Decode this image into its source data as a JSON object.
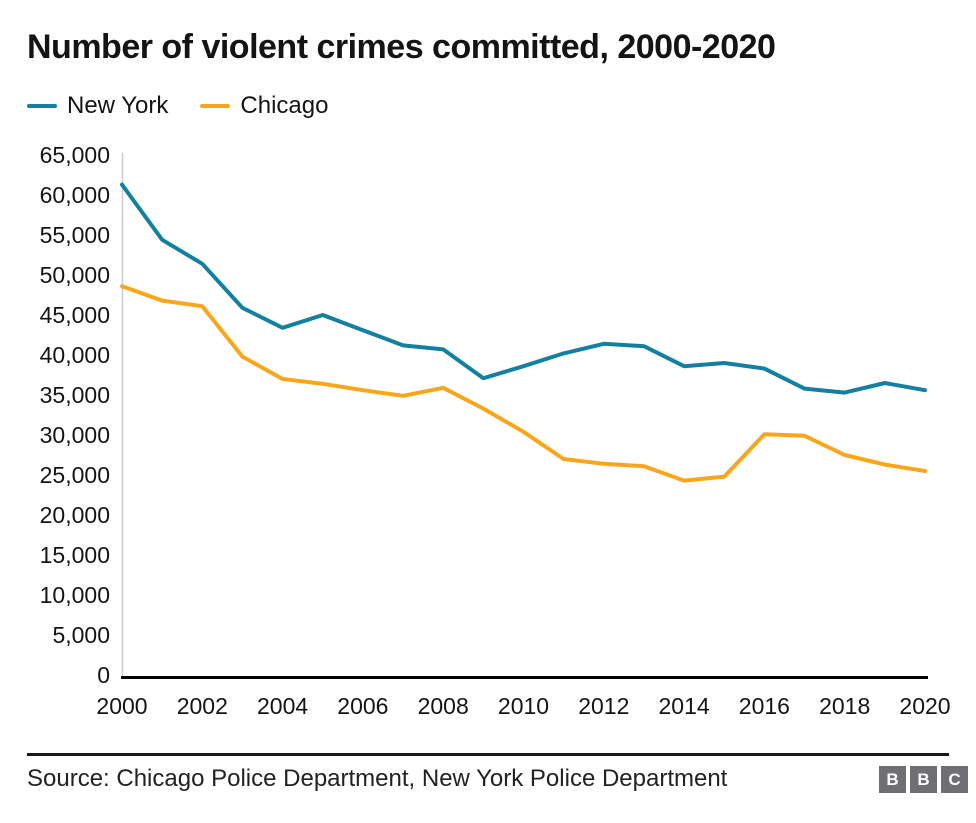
{
  "title": "Number of violent crimes committed, 2000-2020",
  "chart_data": {
    "type": "line",
    "x": [
      2000,
      2001,
      2002,
      2003,
      2004,
      2005,
      2006,
      2007,
      2008,
      2009,
      2010,
      2011,
      2012,
      2013,
      2014,
      2015,
      2016,
      2017,
      2018,
      2019,
      2020
    ],
    "series": [
      {
        "name": "New York",
        "color": "#1380A1",
        "values": [
          61300,
          54400,
          51400,
          45900,
          43400,
          45000,
          43100,
          41200,
          40700,
          37100,
          38600,
          40200,
          41400,
          41100,
          38600,
          39000,
          38300,
          35800,
          35300,
          36500,
          35600
        ]
      },
      {
        "name": "Chicago",
        "color": "#FAA61A",
        "values": [
          48600,
          46800,
          46100,
          39800,
          37000,
          36400,
          35600,
          34900,
          35900,
          33300,
          30400,
          27000,
          26400,
          26100,
          24300,
          24800,
          30100,
          29900,
          27500,
          26300,
          25500
        ]
      }
    ],
    "title": "Number of violent crimes committed, 2000-2020",
    "xlabel": "",
    "ylabel": "",
    "ylim": [
      0,
      65000
    ],
    "y_tick_step": 5000,
    "y_tick_labels": [
      "0",
      "5,000",
      "10,000",
      "15,000",
      "20,000",
      "25,000",
      "30,000",
      "35,000",
      "40,000",
      "45,000",
      "50,000",
      "55,000",
      "60,000",
      "65,000"
    ],
    "x_tick_labels": [
      "2000",
      "2002",
      "2004",
      "2006",
      "2008",
      "2010",
      "2012",
      "2014",
      "2016",
      "2018",
      "2020"
    ],
    "grid": false,
    "legend_position": "top-left"
  },
  "footer": {
    "source": "Source: Chicago Police Department, New York Police Department",
    "logo_letters": [
      "B",
      "B",
      "C"
    ]
  },
  "colors": {
    "y_axis_line": "#cccccc",
    "x_axis_line": "#000000",
    "text": "#141414",
    "logo_bg": "#6e6e73"
  }
}
